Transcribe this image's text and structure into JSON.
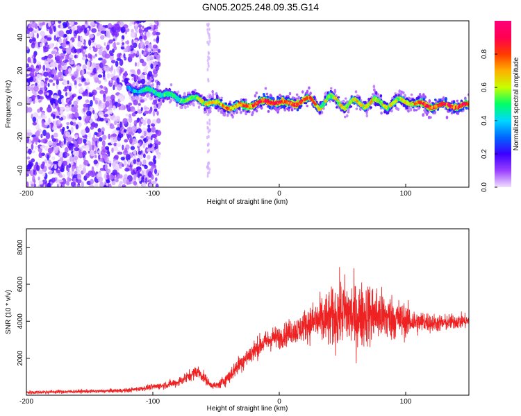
{
  "title": "GN05.2025.248.09.35.G14",
  "chart_data": [
    {
      "type": "heatmap",
      "xlabel": "Height of straight line (km)",
      "ylabel": "Frequency (Hz)",
      "xlim": [
        -200,
        150
      ],
      "ylim": [
        -50,
        50
      ],
      "xticks": [
        -200,
        -100,
        0,
        100
      ],
      "yticks": [
        -40,
        -20,
        0,
        20,
        40
      ],
      "colorbar": {
        "label": "Normalized spectral amplitude",
        "range": [
          0,
          1
        ],
        "ticks": [
          0.0,
          0.2,
          0.4,
          0.6,
          0.8
        ],
        "tick_labels": [
          "0.0",
          "0.2",
          "0.4",
          "0.6",
          "0.8"
        ],
        "colors": [
          "#f0e0ff",
          "#9a40ff",
          "#3b00ff",
          "#0066ff",
          "#00d8ff",
          "#00ff66",
          "#c8ff00",
          "#ffb000",
          "#ff3a00",
          "#ff0050",
          "#ff007a"
        ]
      },
      "center_track": [
        {
          "x": -120,
          "freq": 9,
          "amp": 0.35
        },
        {
          "x": -105,
          "freq": 8,
          "amp": 0.45
        },
        {
          "x": -90,
          "freq": 6,
          "amp": 0.5
        },
        {
          "x": -80,
          "freq": 3,
          "amp": 0.5
        },
        {
          "x": -65,
          "freq": 3,
          "amp": 0.55
        },
        {
          "x": -55,
          "freq": 1,
          "amp": 0.6
        },
        {
          "x": -45,
          "freq": -1,
          "amp": 0.7
        },
        {
          "x": -35,
          "freq": -2,
          "amp": 0.75
        },
        {
          "x": -20,
          "freq": 0,
          "amp": 0.8
        },
        {
          "x": -5,
          "freq": 2,
          "amp": 0.85
        },
        {
          "x": 5,
          "freq": 0,
          "amp": 0.85
        },
        {
          "x": 15,
          "freq": 1,
          "amp": 0.85
        },
        {
          "x": 25,
          "freq": 3,
          "amp": 0.8
        },
        {
          "x": 32,
          "freq": -2,
          "amp": 0.6
        },
        {
          "x": 40,
          "freq": 4,
          "amp": 0.55
        },
        {
          "x": 45,
          "freq": 3,
          "amp": 0.6
        },
        {
          "x": 52,
          "freq": -2,
          "amp": 0.6
        },
        {
          "x": 60,
          "freq": 2,
          "amp": 0.6
        },
        {
          "x": 68,
          "freq": -1,
          "amp": 0.6
        },
        {
          "x": 75,
          "freq": 2,
          "amp": 0.65
        },
        {
          "x": 85,
          "freq": -1,
          "amp": 0.6
        },
        {
          "x": 95,
          "freq": 2,
          "amp": 0.6
        },
        {
          "x": 105,
          "freq": 1,
          "amp": 0.7
        },
        {
          "x": 115,
          "freq": -1,
          "amp": 0.85
        },
        {
          "x": 130,
          "freq": -1,
          "amp": 0.85
        },
        {
          "x": 150,
          "freq": -1,
          "amp": 0.85
        }
      ]
    },
    {
      "type": "line",
      "xlabel": "Height of straight line (km)",
      "ylabel": "SNR (10 * v/v)",
      "xlim": [
        -200,
        150
      ],
      "ylim": [
        0,
        9000
      ],
      "xticks": [
        -200,
        -100,
        0,
        100
      ],
      "yticks": [
        2000,
        4000,
        6000,
        8000
      ],
      "series": [
        {
          "name": "SNR",
          "color": "#ee2222",
          "x": [
            -200,
            -180,
            -160,
            -140,
            -120,
            -110,
            -100,
            -90,
            -80,
            -75,
            -70,
            -65,
            -60,
            -55,
            -50,
            -45,
            -40,
            -35,
            -30,
            -25,
            -20,
            -15,
            -10,
            -5,
            0,
            5,
            10,
            15,
            20,
            25,
            30,
            35,
            40,
            45,
            50,
            55,
            60,
            65,
            70,
            75,
            80,
            85,
            90,
            95,
            100,
            105,
            110,
            115,
            120,
            130,
            140,
            150
          ],
          "y": [
            150,
            180,
            200,
            220,
            260,
            350,
            450,
            550,
            700,
            900,
            1100,
            1300,
            1000,
            600,
            500,
            700,
            1000,
            1400,
            1800,
            2100,
            2400,
            2700,
            2900,
            3100,
            3100,
            3300,
            3500,
            3500,
            3800,
            3900,
            4000,
            4000,
            4100,
            4300,
            4500,
            4400,
            4200,
            4300,
            4400,
            4400,
            4300,
            4200,
            4200,
            4100,
            4000,
            4000,
            3900,
            4000,
            3900,
            3900,
            4000,
            4000
          ],
          "spread": [
            150,
            150,
            150,
            150,
            180,
            200,
            250,
            300,
            400,
            450,
            500,
            550,
            500,
            300,
            300,
            450,
            600,
            700,
            800,
            850,
            900,
            900,
            900,
            1000,
            900,
            1000,
            1100,
            1200,
            1300,
            1600,
            1900,
            2200,
            2400,
            2700,
            2900,
            3000,
            2900,
            2800,
            2700,
            2500,
            2300,
            2100,
            1900,
            1700,
            1400,
            1200,
            1000,
            900,
            800,
            700,
            650,
            600
          ]
        }
      ]
    }
  ]
}
